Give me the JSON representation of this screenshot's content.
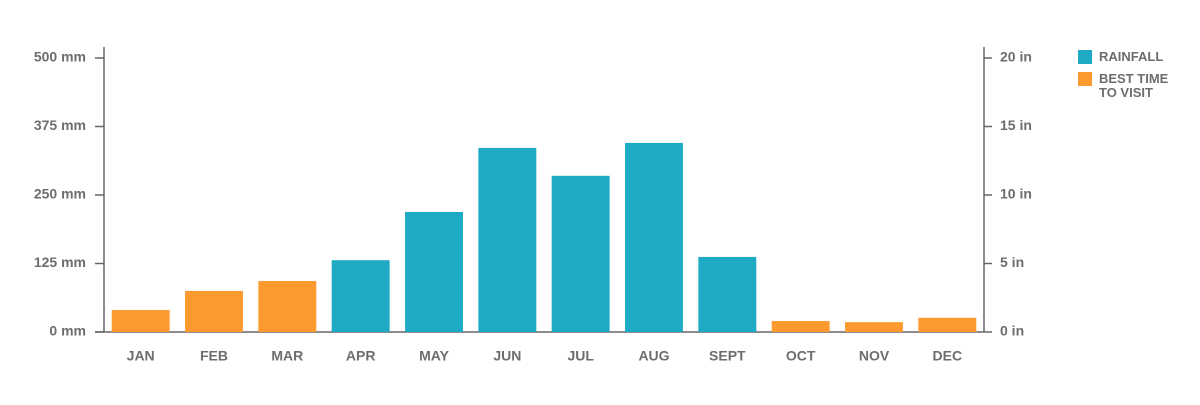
{
  "chart_data": {
    "type": "bar",
    "categories": [
      "JAN",
      "FEB",
      "MAR",
      "APR",
      "MAY",
      "JUN",
      "JUL",
      "AUG",
      "SEPT",
      "OCT",
      "NOV",
      "DEC"
    ],
    "series": [
      {
        "name": "RAINFALL",
        "color": "#1eaac4",
        "values": [
          null,
          null,
          null,
          131,
          219,
          336,
          285,
          345,
          137,
          null,
          null,
          null
        ]
      },
      {
        "name": "BEST TIME TO VISIT",
        "color": "#fd9a2f",
        "values": [
          40,
          75,
          93,
          null,
          null,
          null,
          null,
          null,
          null,
          20,
          18,
          26
        ]
      }
    ],
    "ylim": [
      0,
      500
    ],
    "yticks": [
      {
        "value": 0,
        "label": "0 mm"
      },
      {
        "value": 125,
        "label": "125 mm"
      },
      {
        "value": 250,
        "label": "250 mm"
      },
      {
        "value": 375,
        "label": "375 mm"
      },
      {
        "value": 500,
        "label": "500 mm"
      }
    ],
    "y2lim": [
      0,
      20
    ],
    "y2ticks": [
      {
        "value": 0,
        "label": "0 in"
      },
      {
        "value": 5,
        "label": "5 in"
      },
      {
        "value": 10,
        "label": "10 in"
      },
      {
        "value": 15,
        "label": "15 in"
      },
      {
        "value": 20,
        "label": "20 in"
      }
    ],
    "grid": false
  }
}
